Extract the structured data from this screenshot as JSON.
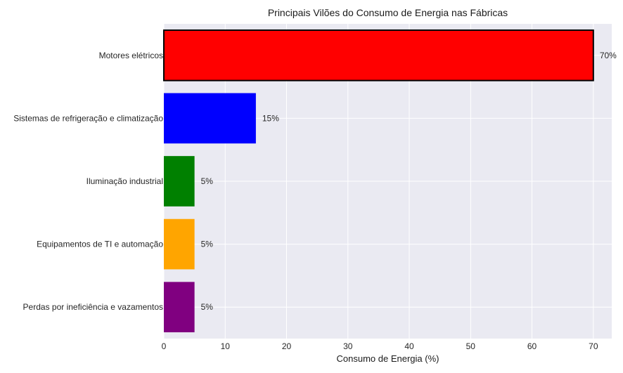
{
  "chart_data": {
    "type": "bar",
    "orientation": "horizontal",
    "title": "Principais Vilões do Consumo de Energia nas Fábricas",
    "xlabel": "Consumo de Energia (%)",
    "ylabel": "",
    "xlim": [
      0,
      73
    ],
    "xticks": [
      0,
      10,
      20,
      30,
      40,
      50,
      60,
      70
    ],
    "grid": true,
    "categories": [
      "Motores elétricos",
      "Sistemas de refrigeração e climatização",
      "Iluminação industrial",
      "Equipamentos de TI e automação",
      "Perdas por ineficiência e vazamentos"
    ],
    "values": [
      70,
      15,
      5,
      5,
      5
    ],
    "value_labels": [
      "70%",
      "15%",
      "5%",
      "5%",
      "5%"
    ],
    "colors": [
      "#ff0000",
      "#0000ff",
      "#008000",
      "#ffa500",
      "#800080"
    ],
    "highlighted_category": "Motores elétricos"
  }
}
